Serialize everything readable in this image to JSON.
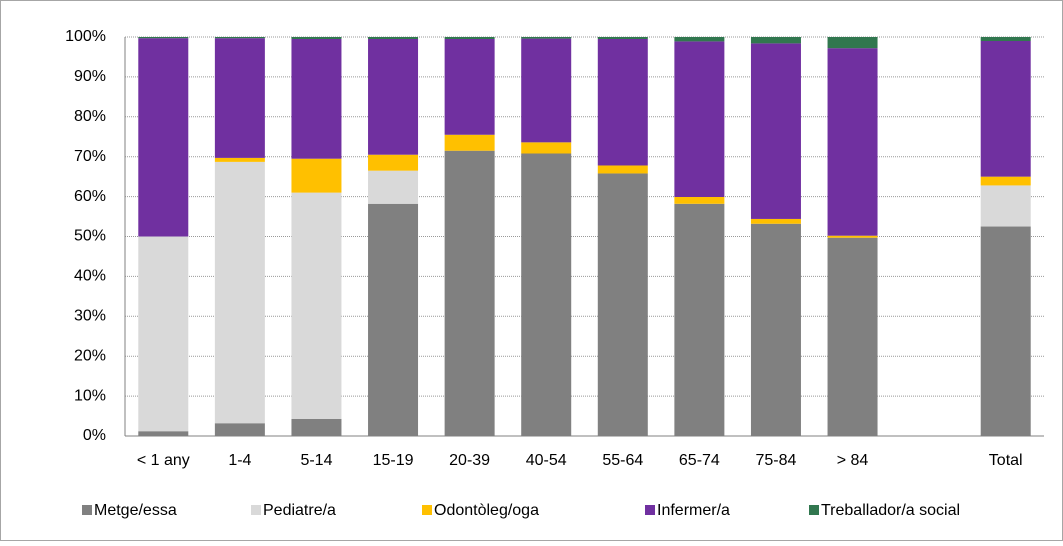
{
  "chart_data": {
    "type": "stacked_bar",
    "categories": [
      "< 1 any",
      "1-4",
      "5-14",
      "15-19",
      "20-39",
      "40-54",
      "55-64",
      "65-74",
      "75-84",
      "> 84",
      null,
      "Total"
    ],
    "series": [
      {
        "name": "Metge/essa",
        "color": "#808080",
        "values": [
          1.2,
          3.2,
          4.3,
          58.2,
          71.5,
          70.8,
          65.8,
          58.2,
          53.2,
          49.7,
          null,
          52.5
        ]
      },
      {
        "name": "Pediatre/a",
        "color": "#d9d9d9",
        "values": [
          48.8,
          65.5,
          56.7,
          8.3,
          0,
          0,
          0,
          0,
          0,
          0,
          null,
          10.3
        ]
      },
      {
        "name": "Odontòleg/oga",
        "color": "#ffc000",
        "values": [
          0,
          1,
          8.5,
          4,
          4,
          2.8,
          2,
          1.7,
          1.2,
          0.5,
          null,
          2.2
        ]
      },
      {
        "name": "Infermer/a",
        "color": "#7030a0",
        "values": [
          49.7,
          30,
          30,
          29,
          24,
          26,
          31.7,
          39,
          44,
          47,
          null,
          34
        ]
      },
      {
        "name": "Treballador/a social",
        "color": "#31774f",
        "values": [
          0.3,
          0.3,
          0.5,
          0.5,
          0.5,
          0.4,
          0.5,
          1.1,
          1.6,
          2.8,
          null,
          1
        ]
      }
    ],
    "ylim": [
      0,
      100
    ],
    "yticks": [
      {
        "value": 0,
        "label": "0%"
      },
      {
        "value": 10,
        "label": "10%"
      },
      {
        "value": 20,
        "label": "20%"
      },
      {
        "value": 30,
        "label": "30%"
      },
      {
        "value": 40,
        "label": "40%"
      },
      {
        "value": 50,
        "label": "50%"
      },
      {
        "value": 60,
        "label": "60%"
      },
      {
        "value": 70,
        "label": "70%"
      },
      {
        "value": 80,
        "label": "80%"
      },
      {
        "value": 90,
        "label": "90%"
      },
      {
        "value": 100,
        "label": "100%"
      }
    ],
    "grid": true,
    "legend": "bottom"
  }
}
